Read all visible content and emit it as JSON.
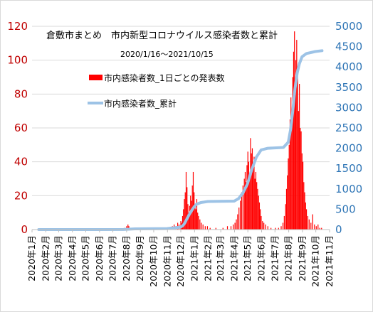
{
  "chart_data": {
    "type": "bar",
    "title": "倉敷市まとめ　市内新型コロナウイルス感染者数と累計",
    "subtitle": "2020/1/16〜2021/10/15",
    "xlabel": "",
    "ylabel": "",
    "ylim": [
      0,
      120
    ],
    "y2lim": [
      0,
      5000
    ],
    "yticks": [
      "0",
      "20",
      "40",
      "60",
      "80",
      "100",
      "120"
    ],
    "y2ticks": [
      "0",
      "500",
      "1000",
      "1500",
      "2000",
      "2500",
      "3000",
      "3500",
      "4000",
      "4500",
      "5000"
    ],
    "categories": [
      "2020年1月",
      "2020年2月",
      "2020年3月",
      "2020年4月",
      "2020年5月",
      "2020年6月",
      "2020年7月",
      "2020年8月",
      "2020年9月",
      "2020年10月",
      "2020年11月",
      "2020年12月",
      "2021年1月",
      "2021年2月",
      "2021年3月",
      "2021年4月",
      "2021年5月",
      "2021年6月",
      "2021年7月",
      "2021年8月",
      "2021年9月",
      "2021年10月",
      "2021年11月"
    ],
    "grid": true,
    "legend_position": "top-left",
    "colors": {
      "bars": "#ff0000",
      "line": "#9dc3e6",
      "left_axis": "#c00000",
      "right_axis": "#2e75b6",
      "grid": "#d9d9d9"
    },
    "series": [
      {
        "name": "市内感染者数_1日ごとの発表数",
        "type": "bar",
        "axis": "left",
        "values": [
          {
            "x": "2020-07-28",
            "y": 1
          },
          {
            "x": "2020-08-01",
            "y": 2
          },
          {
            "x": "2020-08-04",
            "y": 3
          },
          {
            "x": "2020-08-06",
            "y": 2
          },
          {
            "x": "2020-08-09",
            "y": 1
          },
          {
            "x": "2020-08-14",
            "y": 1
          },
          {
            "x": "2020-08-20",
            "y": 1
          },
          {
            "x": "2020-09-10",
            "y": 1
          },
          {
            "x": "2020-10-05",
            "y": 1
          },
          {
            "x": "2020-10-22",
            "y": 1
          },
          {
            "x": "2020-11-05",
            "y": 1
          },
          {
            "x": "2020-11-12",
            "y": 2
          },
          {
            "x": "2020-11-16",
            "y": 3
          },
          {
            "x": "2020-11-20",
            "y": 2
          },
          {
            "x": "2020-11-24",
            "y": 4
          },
          {
            "x": "2020-11-27",
            "y": 3
          },
          {
            "x": "2020-12-01",
            "y": 5
          },
          {
            "x": "2020-12-03",
            "y": 4
          },
          {
            "x": "2020-12-05",
            "y": 8
          },
          {
            "x": "2020-12-07",
            "y": 12
          },
          {
            "x": "2020-12-09",
            "y": 18
          },
          {
            "x": "2020-12-11",
            "y": 22
          },
          {
            "x": "2020-12-13",
            "y": 34
          },
          {
            "x": "2020-12-15",
            "y": 25
          },
          {
            "x": "2020-12-17",
            "y": 15
          },
          {
            "x": "2020-12-19",
            "y": 10
          },
          {
            "x": "2020-12-21",
            "y": 14
          },
          {
            "x": "2020-12-23",
            "y": 20
          },
          {
            "x": "2020-12-25",
            "y": 17
          },
          {
            "x": "2020-12-27",
            "y": 26
          },
          {
            "x": "2020-12-29",
            "y": 34
          },
          {
            "x": "2020-12-31",
            "y": 22
          },
          {
            "x": "2021-01-02",
            "y": 15
          },
          {
            "x": "2021-01-04",
            "y": 12
          },
          {
            "x": "2021-01-06",
            "y": 18
          },
          {
            "x": "2021-01-08",
            "y": 10
          },
          {
            "x": "2021-01-10",
            "y": 8
          },
          {
            "x": "2021-01-13",
            "y": 6
          },
          {
            "x": "2021-01-16",
            "y": 4
          },
          {
            "x": "2021-01-20",
            "y": 3
          },
          {
            "x": "2021-01-25",
            "y": 2
          },
          {
            "x": "2021-01-30",
            "y": 2
          },
          {
            "x": "2021-02-05",
            "y": 1
          },
          {
            "x": "2021-02-18",
            "y": 1
          },
          {
            "x": "2021-03-06",
            "y": 1
          },
          {
            "x": "2021-03-16",
            "y": 2
          },
          {
            "x": "2021-03-24",
            "y": 2
          },
          {
            "x": "2021-03-29",
            "y": 3
          },
          {
            "x": "2021-04-02",
            "y": 4
          },
          {
            "x": "2021-04-05",
            "y": 6
          },
          {
            "x": "2021-04-08",
            "y": 9
          },
          {
            "x": "2021-04-11",
            "y": 13
          },
          {
            "x": "2021-04-14",
            "y": 17
          },
          {
            "x": "2021-04-17",
            "y": 22
          },
          {
            "x": "2021-04-20",
            "y": 26
          },
          {
            "x": "2021-04-23",
            "y": 30
          },
          {
            "x": "2021-04-25",
            "y": 34
          },
          {
            "x": "2021-04-27",
            "y": 28
          },
          {
            "x": "2021-04-29",
            "y": 38
          },
          {
            "x": "2021-05-01",
            "y": 46
          },
          {
            "x": "2021-05-03",
            "y": 40
          },
          {
            "x": "2021-05-05",
            "y": 32
          },
          {
            "x": "2021-05-07",
            "y": 54
          },
          {
            "x": "2021-05-09",
            "y": 45
          },
          {
            "x": "2021-05-11",
            "y": 48
          },
          {
            "x": "2021-05-13",
            "y": 36
          },
          {
            "x": "2021-05-15",
            "y": 43
          },
          {
            "x": "2021-05-17",
            "y": 30
          },
          {
            "x": "2021-05-19",
            "y": 34
          },
          {
            "x": "2021-05-21",
            "y": 28
          },
          {
            "x": "2021-05-23",
            "y": 24
          },
          {
            "x": "2021-05-25",
            "y": 20
          },
          {
            "x": "2021-05-27",
            "y": 16
          },
          {
            "x": "2021-05-29",
            "y": 12
          },
          {
            "x": "2021-05-31",
            "y": 8
          },
          {
            "x": "2021-06-03",
            "y": 5
          },
          {
            "x": "2021-06-06",
            "y": 4
          },
          {
            "x": "2021-06-10",
            "y": 3
          },
          {
            "x": "2021-06-15",
            "y": 2
          },
          {
            "x": "2021-06-22",
            "y": 1
          },
          {
            "x": "2021-07-02",
            "y": 1
          },
          {
            "x": "2021-07-09",
            "y": 1
          },
          {
            "x": "2021-07-15",
            "y": 2
          },
          {
            "x": "2021-07-19",
            "y": 4
          },
          {
            "x": "2021-07-22",
            "y": 8
          },
          {
            "x": "2021-07-25",
            "y": 15
          },
          {
            "x": "2021-07-27",
            "y": 24
          },
          {
            "x": "2021-07-29",
            "y": 32
          },
          {
            "x": "2021-07-31",
            "y": 42
          },
          {
            "x": "2021-08-02",
            "y": 50
          },
          {
            "x": "2021-08-04",
            "y": 65
          },
          {
            "x": "2021-08-06",
            "y": 78
          },
          {
            "x": "2021-08-08",
            "y": 62
          },
          {
            "x": "2021-08-10",
            "y": 90
          },
          {
            "x": "2021-08-12",
            "y": 105
          },
          {
            "x": "2021-08-14",
            "y": 117
          },
          {
            "x": "2021-08-15",
            "y": 80
          },
          {
            "x": "2021-08-17",
            "y": 100
          },
          {
            "x": "2021-08-19",
            "y": 112
          },
          {
            "x": "2021-08-21",
            "y": 95
          },
          {
            "x": "2021-08-23",
            "y": 70
          },
          {
            "x": "2021-08-25",
            "y": 86
          },
          {
            "x": "2021-08-27",
            "y": 60
          },
          {
            "x": "2021-08-29",
            "y": 58
          },
          {
            "x": "2021-08-31",
            "y": 45
          },
          {
            "x": "2021-09-02",
            "y": 40
          },
          {
            "x": "2021-09-04",
            "y": 28
          },
          {
            "x": "2021-09-06",
            "y": 22
          },
          {
            "x": "2021-09-08",
            "y": 16
          },
          {
            "x": "2021-09-10",
            "y": 12
          },
          {
            "x": "2021-09-13",
            "y": 8
          },
          {
            "x": "2021-09-16",
            "y": 6
          },
          {
            "x": "2021-09-20",
            "y": 4
          },
          {
            "x": "2021-09-24",
            "y": 9
          },
          {
            "x": "2021-09-28",
            "y": 3
          },
          {
            "x": "2021-10-02",
            "y": 2
          },
          {
            "x": "2021-10-06",
            "y": 3
          },
          {
            "x": "2021-10-10",
            "y": 1
          },
          {
            "x": "2021-10-14",
            "y": 1
          }
        ]
      },
      {
        "name": "市内感染者数_累計",
        "type": "line",
        "axis": "right",
        "values": [
          {
            "x": "2020-01-16",
            "y": 0
          },
          {
            "x": "2020-07-25",
            "y": 2
          },
          {
            "x": "2020-08-20",
            "y": 18
          },
          {
            "x": "2020-10-31",
            "y": 25
          },
          {
            "x": "2020-11-30",
            "y": 60
          },
          {
            "x": "2020-12-05",
            "y": 90
          },
          {
            "x": "2020-12-10",
            "y": 160
          },
          {
            "x": "2020-12-15",
            "y": 270
          },
          {
            "x": "2020-12-20",
            "y": 370
          },
          {
            "x": "2020-12-25",
            "y": 460
          },
          {
            "x": "2020-12-31",
            "y": 560
          },
          {
            "x": "2021-01-05",
            "y": 620
          },
          {
            "x": "2021-01-15",
            "y": 665
          },
          {
            "x": "2021-01-31",
            "y": 690
          },
          {
            "x": "2021-03-31",
            "y": 700
          },
          {
            "x": "2021-04-10",
            "y": 760
          },
          {
            "x": "2021-04-20",
            "y": 900
          },
          {
            "x": "2021-04-30",
            "y": 1120
          },
          {
            "x": "2021-05-10",
            "y": 1480
          },
          {
            "x": "2021-05-20",
            "y": 1780
          },
          {
            "x": "2021-05-31",
            "y": 1960
          },
          {
            "x": "2021-06-15",
            "y": 2000
          },
          {
            "x": "2021-07-20",
            "y": 2020
          },
          {
            "x": "2021-07-31",
            "y": 2150
          },
          {
            "x": "2021-08-05",
            "y": 2450
          },
          {
            "x": "2021-08-10",
            "y": 2900
          },
          {
            "x": "2021-08-15",
            "y": 3450
          },
          {
            "x": "2021-08-20",
            "y": 3850
          },
          {
            "x": "2021-08-25",
            "y": 4080
          },
          {
            "x": "2021-08-31",
            "y": 4250
          },
          {
            "x": "2021-09-10",
            "y": 4330
          },
          {
            "x": "2021-09-30",
            "y": 4380
          },
          {
            "x": "2021-10-15",
            "y": 4400
          }
        ]
      }
    ]
  }
}
